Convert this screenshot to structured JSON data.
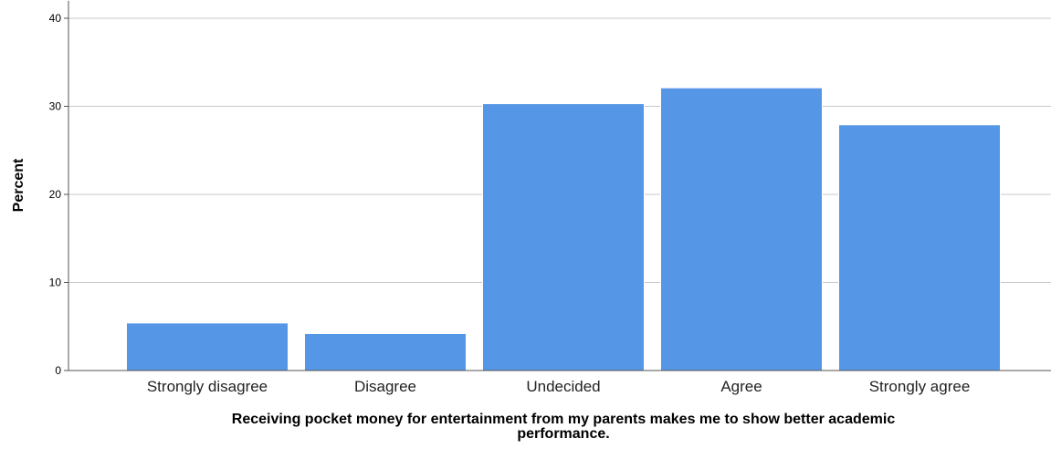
{
  "chart_data": {
    "type": "bar",
    "title": "",
    "categories": [
      "Strongly disagree",
      "Disagree",
      "Undecided",
      "Agree",
      "Strongly agree"
    ],
    "values": [
      5.4,
      4.2,
      30.3,
      32.1,
      27.9
    ],
    "ylabel": "Percent",
    "xlabel_lines": [
      "Receiving pocket money for entertainment from my parents makes me to show better academic",
      "performance."
    ],
    "yticks": [
      0,
      10,
      20,
      30,
      40
    ],
    "ylim": [
      0,
      42
    ],
    "grid": true,
    "colors": {
      "bar": "#5596e6",
      "bar_edge": "#ffffff",
      "grid": "#c8c8c8",
      "axis": "#555555"
    }
  }
}
